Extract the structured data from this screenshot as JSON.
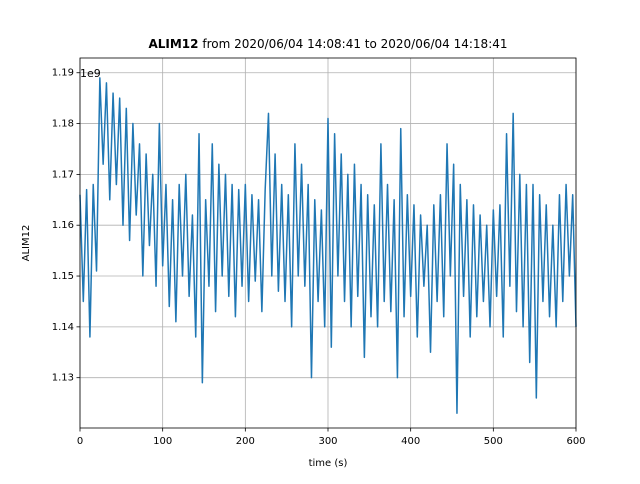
{
  "chart_data": {
    "type": "line",
    "title_bold": "ALIM12",
    "title": "from 2020/06/04 14:08:41 to 2020/06/04 14:18:41",
    "x_label": "time (s)",
    "y_label": "ALIM12",
    "y_offset_text": "1e9",
    "xlim": [
      0,
      600
    ],
    "ylim": [
      1.1201,
      1.1929
    ],
    "xticks": [
      0,
      100,
      200,
      300,
      400,
      500,
      600
    ],
    "yticks": [
      1.13,
      1.14,
      1.15,
      1.16,
      1.17,
      1.18,
      1.19
    ],
    "grid": true,
    "x": [
      0,
      4,
      8,
      12,
      16,
      20,
      24,
      28,
      32,
      36,
      40,
      44,
      48,
      52,
      56,
      60,
      64,
      68,
      72,
      76,
      80,
      84,
      88,
      92,
      96,
      100,
      104,
      108,
      112,
      116,
      120,
      124,
      128,
      132,
      136,
      140,
      144,
      148,
      152,
      156,
      160,
      164,
      168,
      172,
      176,
      180,
      184,
      188,
      192,
      196,
      200,
      204,
      208,
      212,
      216,
      220,
      224,
      228,
      232,
      236,
      240,
      244,
      248,
      252,
      256,
      260,
      264,
      268,
      272,
      276,
      280,
      284,
      288,
      292,
      296,
      300,
      304,
      308,
      312,
      316,
      320,
      324,
      328,
      332,
      336,
      340,
      344,
      348,
      352,
      356,
      360,
      364,
      368,
      372,
      376,
      380,
      384,
      388,
      392,
      396,
      400,
      404,
      408,
      412,
      416,
      420,
      424,
      428,
      432,
      436,
      440,
      444,
      448,
      452,
      456,
      460,
      464,
      468,
      472,
      476,
      480,
      484,
      488,
      492,
      496,
      500,
      504,
      508,
      512,
      516,
      520,
      524,
      528,
      532,
      536,
      540,
      544,
      548,
      552,
      556,
      560,
      564,
      568,
      572,
      576,
      580,
      584,
      588,
      592,
      596,
      600
    ],
    "series": [
      {
        "name": "ALIM12",
        "color": "#1f77b4",
        "values": [
          1.166,
          1.145,
          1.167,
          1.138,
          1.168,
          1.151,
          1.189,
          1.172,
          1.188,
          1.165,
          1.186,
          1.168,
          1.185,
          1.16,
          1.183,
          1.157,
          1.18,
          1.162,
          1.176,
          1.15,
          1.174,
          1.156,
          1.17,
          1.148,
          1.18,
          1.152,
          1.168,
          1.144,
          1.165,
          1.141,
          1.168,
          1.15,
          1.17,
          1.146,
          1.162,
          1.138,
          1.178,
          1.129,
          1.165,
          1.148,
          1.176,
          1.143,
          1.172,
          1.15,
          1.17,
          1.146,
          1.168,
          1.142,
          1.167,
          1.148,
          1.168,
          1.145,
          1.166,
          1.149,
          1.165,
          1.143,
          1.167,
          1.182,
          1.15,
          1.174,
          1.147,
          1.168,
          1.145,
          1.166,
          1.14,
          1.176,
          1.15,
          1.172,
          1.148,
          1.168,
          1.13,
          1.165,
          1.145,
          1.163,
          1.14,
          1.181,
          1.136,
          1.178,
          1.15,
          1.174,
          1.145,
          1.17,
          1.14,
          1.172,
          1.146,
          1.168,
          1.134,
          1.166,
          1.142,
          1.164,
          1.14,
          1.176,
          1.145,
          1.168,
          1.143,
          1.165,
          1.13,
          1.179,
          1.142,
          1.166,
          1.146,
          1.164,
          1.138,
          1.162,
          1.148,
          1.16,
          1.135,
          1.164,
          1.145,
          1.166,
          1.142,
          1.176,
          1.15,
          1.172,
          1.123,
          1.168,
          1.146,
          1.165,
          1.138,
          1.164,
          1.142,
          1.162,
          1.145,
          1.16,
          1.14,
          1.163,
          1.146,
          1.164,
          1.138,
          1.178,
          1.148,
          1.182,
          1.143,
          1.17,
          1.14,
          1.168,
          1.133,
          1.168,
          1.126,
          1.166,
          1.145,
          1.164,
          1.142,
          1.16,
          1.14,
          1.166,
          1.145,
          1.168,
          1.15,
          1.166,
          1.14
        ]
      }
    ]
  }
}
